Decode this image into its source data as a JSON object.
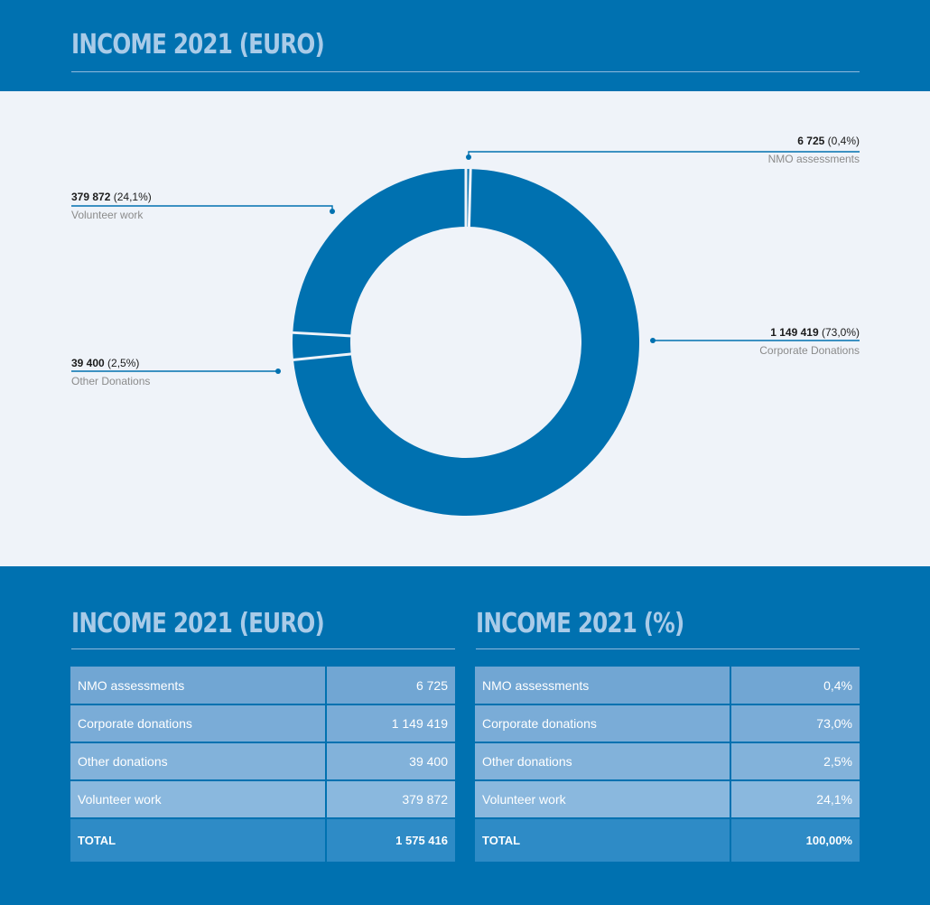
{
  "header": {
    "title": "INCOME 2021 (EURO)"
  },
  "chart_data": {
    "type": "pie",
    "variant": "donut",
    "title": "INCOME 2021 (EURO)",
    "categories": [
      "NMO assessments",
      "Corporate Donations",
      "Other Donations",
      "Volunteer work"
    ],
    "values": [
      6725,
      1149419,
      39400,
      379872
    ],
    "percent_labels": [
      "(0,4%)",
      "(73,0%)",
      "(2,5%)",
      "(24,1%)"
    ],
    "value_labels": [
      "6 725",
      "1 149 419",
      "39 400",
      "379 872"
    ],
    "color": "#0071b0",
    "callouts": [
      {
        "value": "6 725",
        "pct": "(0,4%)",
        "category": "NMO assessments"
      },
      {
        "value": "1 149 419",
        "pct": "(73,0%)",
        "category": "Corporate Donations"
      },
      {
        "value": "39 400",
        "pct": "(2,5%)",
        "category": "Other Donations"
      },
      {
        "value": "379 872",
        "pct": "(24,1%)",
        "category": "Volunteer work"
      }
    ]
  },
  "tables": [
    {
      "title": "INCOME 2021 (EURO)",
      "rows": [
        {
          "label": "NMO assessments",
          "value": "6 725"
        },
        {
          "label": "Corporate donations",
          "value": "1 149 419"
        },
        {
          "label": "Other donations",
          "value": "39 400"
        },
        {
          "label": "Volunteer work",
          "value": "379 872"
        }
      ],
      "total": {
        "label": "TOTAL",
        "value": "1 575 416"
      }
    },
    {
      "title": "INCOME 2021 (%)",
      "rows": [
        {
          "label": "NMO assessments",
          "value": "0,4%"
        },
        {
          "label": "Corporate donations",
          "value": "73,0%"
        },
        {
          "label": "Other donations",
          "value": "2,5%"
        },
        {
          "label": "Volunteer work",
          "value": "24,1%"
        }
      ],
      "total": {
        "label": "TOTAL",
        "value": "100,00%"
      }
    }
  ],
  "colors": {
    "background": "#0071b0",
    "panel": "#eff3f9",
    "title": "#a9cbe8",
    "donut": "#0071b0"
  }
}
